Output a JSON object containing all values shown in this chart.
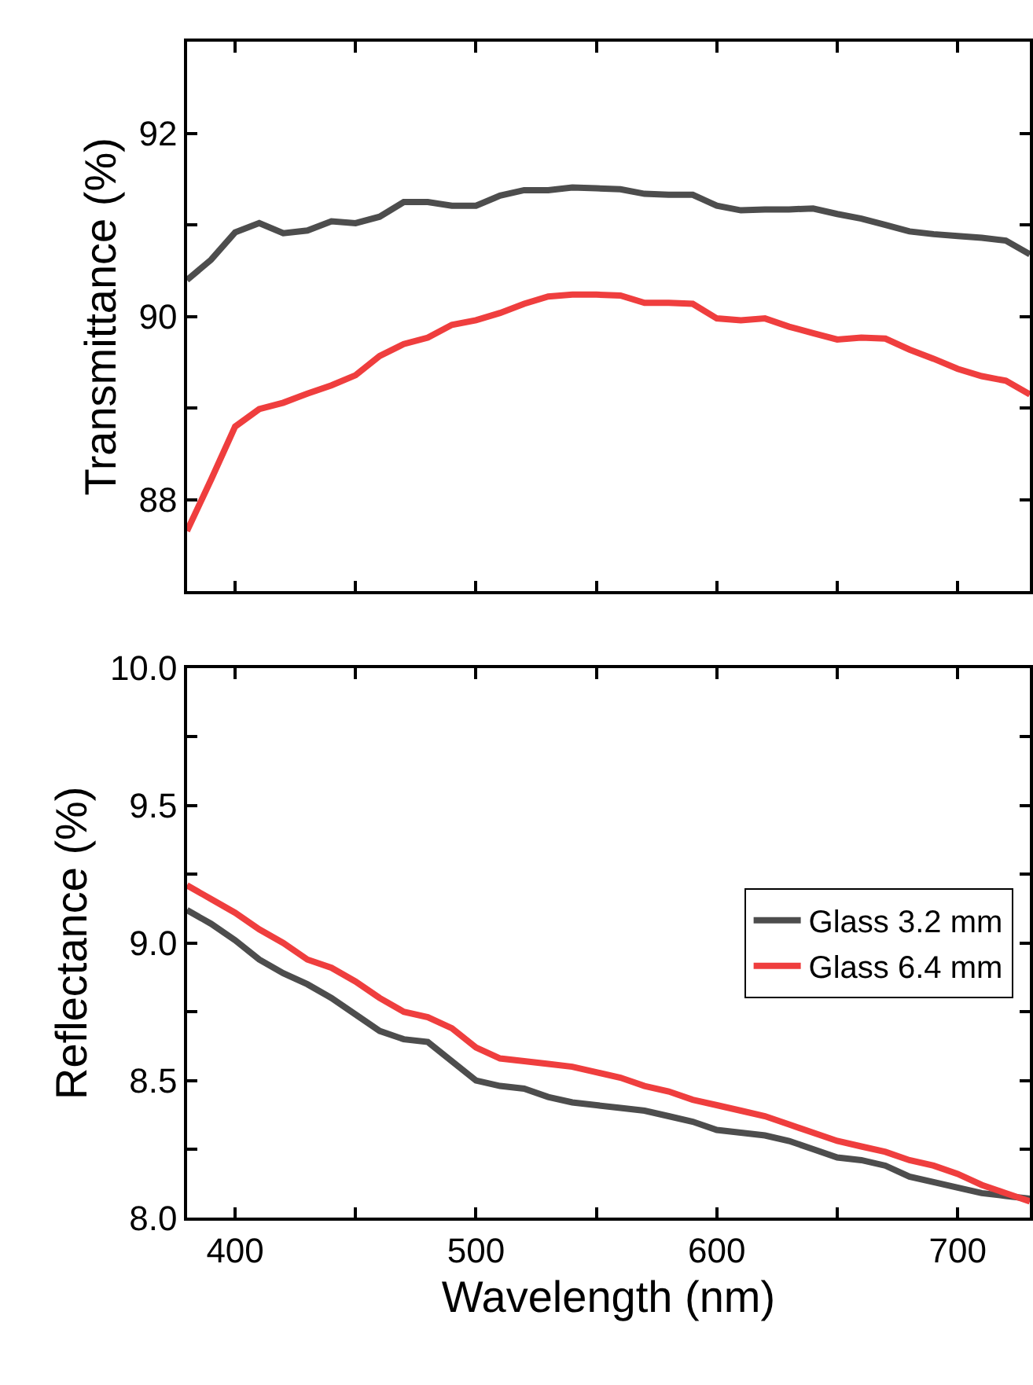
{
  "chart_data": [
    {
      "type": "line",
      "ylabel": "Transmittance (%)",
      "x": [
        380,
        390,
        400,
        410,
        420,
        430,
        440,
        450,
        460,
        470,
        480,
        490,
        500,
        510,
        520,
        530,
        540,
        550,
        560,
        570,
        580,
        590,
        600,
        610,
        620,
        630,
        640,
        650,
        660,
        670,
        680,
        690,
        700,
        710,
        720,
        730
      ],
      "series": [
        {
          "color": "#4d4d4d",
          "values": [
            90.4,
            90.62,
            90.92,
            91.02,
            90.91,
            90.94,
            91.04,
            91.02,
            91.09,
            91.25,
            91.25,
            91.21,
            91.21,
            91.32,
            91.38,
            91.38,
            91.41,
            91.4,
            91.39,
            91.34,
            91.33,
            91.33,
            91.21,
            91.16,
            91.17,
            91.17,
            91.18,
            91.12,
            91.07,
            91.0,
            90.93,
            90.9,
            90.88,
            90.86,
            90.83,
            90.68
          ]
        },
        {
          "color": "#ef3e3e",
          "values": [
            87.66,
            88.22,
            88.8,
            88.99,
            89.06,
            89.16,
            89.25,
            89.36,
            89.57,
            89.7,
            89.77,
            89.91,
            89.96,
            90.04,
            90.14,
            90.22,
            90.24,
            90.24,
            90.23,
            90.15,
            90.15,
            90.14,
            89.98,
            89.96,
            89.98,
            89.89,
            89.82,
            89.75,
            89.77,
            89.76,
            89.64,
            89.54,
            89.43,
            89.35,
            89.3,
            89.15
          ]
        }
      ],
      "xlim": [
        380,
        730
      ],
      "xticks": [
        400,
        {
          "value": 450,
          "label": null
        },
        500,
        {
          "value": 550,
          "label": null
        },
        600,
        {
          "value": 650,
          "label": null
        },
        700
      ],
      "ylim": [
        87,
        93
      ],
      "yticks": [
        {
          "value": 87,
          "label": null
        },
        88,
        {
          "value": 89,
          "label": null
        },
        90,
        {
          "value": 91,
          "label": null
        },
        92,
        {
          "value": 93,
          "label": null
        }
      ],
      "tick_labels": "y",
      "legend": false,
      "line_style": "solid",
      "marker": "none"
    },
    {
      "type": "line",
      "xlabel": "Wavelength (nm)",
      "ylabel": "Reflectance (%)",
      "x": [
        380,
        390,
        400,
        410,
        420,
        430,
        440,
        450,
        460,
        470,
        480,
        490,
        500,
        510,
        520,
        530,
        540,
        550,
        560,
        570,
        580,
        590,
        600,
        610,
        620,
        630,
        640,
        650,
        660,
        670,
        680,
        690,
        700,
        710,
        720,
        730
      ],
      "series": [
        {
          "name": "Glass 3.2 mm",
          "color": "#4d4d4d",
          "values": [
            9.12,
            9.07,
            9.01,
            8.94,
            8.89,
            8.85,
            8.8,
            8.74,
            8.68,
            8.65,
            8.64,
            8.57,
            8.5,
            8.48,
            8.47,
            8.44,
            8.42,
            8.41,
            8.4,
            8.39,
            8.37,
            8.35,
            8.32,
            8.31,
            8.3,
            8.28,
            8.25,
            8.22,
            8.21,
            8.19,
            8.15,
            8.13,
            8.11,
            8.09,
            8.08,
            8.07
          ]
        },
        {
          "name": "Glass 6.4 mm",
          "color": "#ef3e3e",
          "values": [
            9.21,
            9.16,
            9.11,
            9.05,
            9.0,
            8.94,
            8.91,
            8.86,
            8.8,
            8.75,
            8.73,
            8.69,
            8.62,
            8.58,
            8.57,
            8.56,
            8.55,
            8.53,
            8.51,
            8.48,
            8.46,
            8.43,
            8.41,
            8.39,
            8.37,
            8.34,
            8.31,
            8.28,
            8.26,
            8.24,
            8.21,
            8.19,
            8.16,
            8.12,
            8.09,
            8.06
          ]
        }
      ],
      "xlim": [
        380,
        730
      ],
      "xticks": [
        400,
        {
          "value": 450,
          "label": null
        },
        500,
        {
          "value": 550,
          "label": null
        },
        600,
        {
          "value": 650,
          "label": null
        },
        700
      ],
      "ylim": [
        8.0,
        10.0
      ],
      "yticks": [
        {
          "value": 8.0,
          "label": "8.0"
        },
        {
          "value": 8.25,
          "label": null
        },
        {
          "value": 8.5,
          "label": "8.5"
        },
        {
          "value": 8.75,
          "label": null
        },
        {
          "value": 9.0,
          "label": "9.0"
        },
        {
          "value": 9.25,
          "label": null
        },
        {
          "value": 9.5,
          "label": "9.5"
        },
        {
          "value": 9.75,
          "label": null
        },
        {
          "value": 10.0,
          "label": "10.0"
        }
      ],
      "legend": "right",
      "line_style": "solid",
      "marker": "none"
    }
  ]
}
